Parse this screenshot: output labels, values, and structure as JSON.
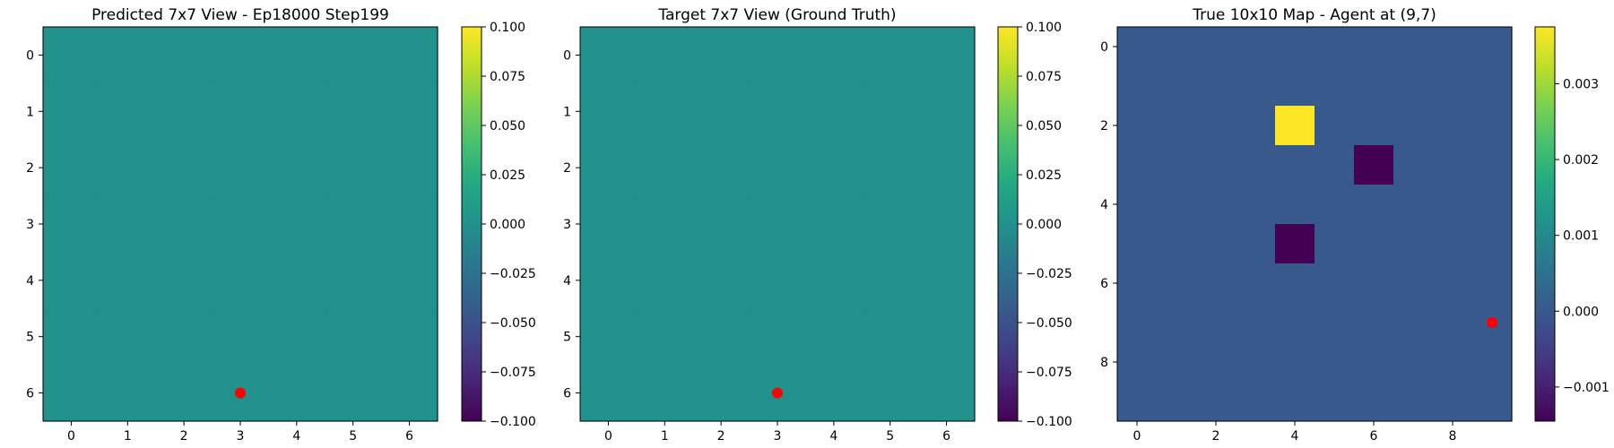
{
  "figure": {
    "panels": [
      {
        "title": "Predicted 7x7 View - Ep18000 Step199"
      },
      {
        "title": "Target 7x7 View (Ground Truth)"
      },
      {
        "title": "True 10x10 Map - Agent at (9,7)"
      }
    ]
  },
  "colors": {
    "agent_marker": "#ff0000",
    "colormap": "viridis"
  },
  "chart_data": [
    {
      "type": "heatmap",
      "title": "Predicted 7x7 View - Ep18000 Step199",
      "rows": 7,
      "cols": 7,
      "values": [
        [
          0,
          0,
          0,
          0,
          0,
          0,
          0
        ],
        [
          0,
          0,
          0,
          0,
          0,
          0,
          0
        ],
        [
          0,
          0,
          0,
          0,
          0,
          0,
          0
        ],
        [
          0,
          0,
          0,
          0,
          0,
          0,
          0
        ],
        [
          0,
          0,
          0,
          0,
          0,
          0,
          0
        ],
        [
          0,
          0,
          0,
          0,
          0,
          0,
          0
        ],
        [
          0,
          0,
          0,
          0,
          0,
          0,
          0
        ]
      ],
      "vmin": -0.1,
      "vmax": 0.1,
      "xticks": [
        0,
        1,
        2,
        3,
        4,
        5,
        6
      ],
      "yticks": [
        0,
        1,
        2,
        3,
        4,
        5,
        6
      ],
      "colorbar_ticks": [
        "0.100",
        "0.075",
        "0.050",
        "0.025",
        "0.000",
        "−0.025",
        "−0.050",
        "−0.075",
        "−0.100"
      ],
      "colorbar_tick_values": [
        0.1,
        0.075,
        0.05,
        0.025,
        0,
        -0.025,
        -0.05,
        -0.075,
        -0.1
      ],
      "marker": {
        "x": 3,
        "y": 6
      }
    },
    {
      "type": "heatmap",
      "title": "Target 7x7 View (Ground Truth)",
      "rows": 7,
      "cols": 7,
      "values": [
        [
          0,
          0,
          0,
          0,
          0,
          0,
          0
        ],
        [
          0,
          0,
          0,
          0,
          0,
          0,
          0
        ],
        [
          0,
          0,
          0,
          0,
          0,
          0,
          0
        ],
        [
          0,
          0,
          0,
          0,
          0,
          0,
          0
        ],
        [
          0,
          0,
          0,
          0,
          0,
          0,
          0
        ],
        [
          0,
          0,
          0,
          0,
          0,
          0,
          0
        ],
        [
          0,
          0,
          0,
          0,
          0,
          0,
          0
        ]
      ],
      "vmin": -0.1,
      "vmax": 0.1,
      "xticks": [
        0,
        1,
        2,
        3,
        4,
        5,
        6
      ],
      "yticks": [
        0,
        1,
        2,
        3,
        4,
        5,
        6
      ],
      "colorbar_ticks": [
        "0.100",
        "0.075",
        "0.050",
        "0.025",
        "0.000",
        "−0.025",
        "−0.050",
        "−0.075",
        "−0.100"
      ],
      "colorbar_tick_values": [
        0.1,
        0.075,
        0.05,
        0.025,
        0,
        -0.025,
        -0.05,
        -0.075,
        -0.1
      ],
      "marker": {
        "x": 3,
        "y": 6
      }
    },
    {
      "type": "heatmap",
      "title": "True 10x10 Map - Agent at (9,7)",
      "rows": 10,
      "cols": 10,
      "values": [
        [
          0,
          0,
          0,
          0,
          0,
          0,
          0,
          0,
          0,
          0
        ],
        [
          0,
          0,
          0,
          0,
          0,
          0,
          0,
          0,
          0,
          0
        ],
        [
          0,
          0,
          0,
          0,
          0.00375,
          0,
          0,
          0,
          0,
          0
        ],
        [
          0,
          0,
          0,
          0,
          0,
          0,
          -0.00145,
          0,
          0,
          0
        ],
        [
          0,
          0,
          0,
          0,
          0,
          0,
          0,
          0,
          0,
          0
        ],
        [
          0,
          0,
          0,
          0,
          -0.00145,
          0,
          0,
          0,
          0,
          0
        ],
        [
          0,
          0,
          0,
          0,
          0,
          0,
          0,
          0,
          0,
          0
        ],
        [
          0,
          0,
          0,
          0,
          0,
          0,
          0,
          0,
          0,
          0
        ],
        [
          0,
          0,
          0,
          0,
          0,
          0,
          0,
          0,
          0,
          0
        ],
        [
          0,
          0,
          0,
          0,
          0,
          0,
          0,
          0,
          0,
          0
        ]
      ],
      "vmin": -0.00145,
      "vmax": 0.00375,
      "xticks": [
        0,
        2,
        4,
        6,
        8
      ],
      "yticks": [
        0,
        2,
        4,
        6,
        8
      ],
      "colorbar_ticks": [
        "0.003",
        "0.002",
        "0.001",
        "0.000",
        "−0.001"
      ],
      "colorbar_tick_values": [
        0.003,
        0.002,
        0.001,
        0,
        -0.001
      ],
      "marker": {
        "x": 9,
        "y": 7
      }
    }
  ]
}
